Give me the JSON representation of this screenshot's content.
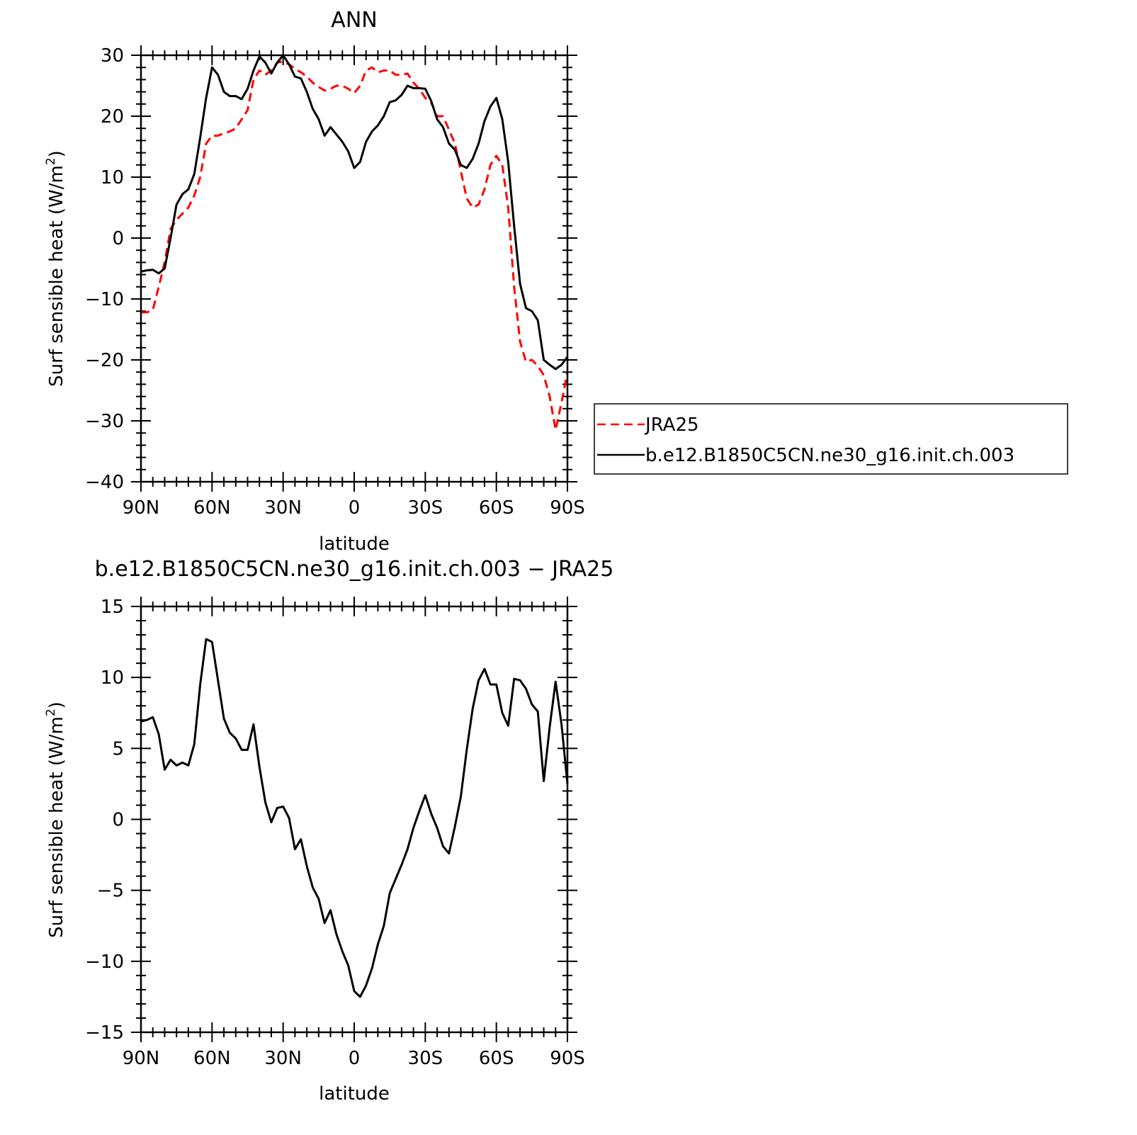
{
  "chart_data": [
    {
      "type": "line",
      "title": "ANN",
      "xlabel": "latitude",
      "ylabel": "Surf sensible heat (W/m²)",
      "ylabel_base": "Surf sensible heat (W/m",
      "ylabel_sup": "2",
      "ylabel_end": ")",
      "xlim": [
        90,
        -90
      ],
      "ylim": [
        -40,
        30
      ],
      "x_ticks": [
        90,
        60,
        30,
        0,
        -30,
        -60,
        -90
      ],
      "x_tick_labels": [
        "90N",
        "60N",
        "30N",
        "0",
        "30S",
        "60S",
        "90S"
      ],
      "y_ticks": [
        -40,
        -30,
        -20,
        -10,
        0,
        10,
        20,
        30
      ],
      "y_tick_labels": [
        "−40",
        "−30",
        "−20",
        "−10",
        "0",
        "10",
        "20",
        "30"
      ],
      "legend_position": "right",
      "series": [
        {
          "name": "JRA25",
          "color": "#ff0000",
          "style": "dashed",
          "points": [
            [
              90,
              -12.2
            ],
            [
              87.5,
              -12.2
            ],
            [
              85,
              -11.8
            ],
            [
              82.5,
              -8
            ],
            [
              80,
              -4
            ],
            [
              77.5,
              1.5
            ],
            [
              75,
              3
            ],
            [
              72.5,
              4
            ],
            [
              70,
              5
            ],
            [
              67.5,
              7
            ],
            [
              65,
              10
            ],
            [
              62.5,
              15.5
            ],
            [
              60,
              16.8
            ],
            [
              57.5,
              16.8
            ],
            [
              55,
              17.2
            ],
            [
              52.5,
              17.5
            ],
            [
              50,
              18
            ],
            [
              47.5,
              19.5
            ],
            [
              45,
              21
            ],
            [
              42.5,
              26
            ],
            [
              40,
              27.5
            ],
            [
              37.5,
              26.8
            ],
            [
              35,
              27.5
            ],
            [
              32.5,
              28.8
            ],
            [
              30,
              29
            ],
            [
              27.5,
              28.5
            ],
            [
              25,
              27.8
            ],
            [
              22.5,
              27.2
            ],
            [
              20,
              26.5
            ],
            [
              17.5,
              25.5
            ],
            [
              15,
              24.8
            ],
            [
              12.5,
              24.2
            ],
            [
              10,
              24.5
            ],
            [
              7.5,
              25
            ],
            [
              5,
              25
            ],
            [
              2.5,
              24.5
            ],
            [
              0,
              23.8
            ],
            [
              -2.5,
              25
            ],
            [
              -5,
              27.5
            ],
            [
              -7.5,
              28
            ],
            [
              -10,
              27.2
            ],
            [
              -12.5,
              27.5
            ],
            [
              -15,
              27.5
            ],
            [
              -17.5,
              26.8
            ],
            [
              -20,
              26.8
            ],
            [
              -22.5,
              27
            ],
            [
              -25,
              25.5
            ],
            [
              -27.5,
              24.5
            ],
            [
              -30,
              23
            ],
            [
              -32.5,
              22.2
            ],
            [
              -35,
              20
            ],
            [
              -37.5,
              20
            ],
            [
              -40,
              17.8
            ],
            [
              -42.5,
              15.5
            ],
            [
              -45,
              11
            ],
            [
              -47.5,
              6.5
            ],
            [
              -50,
              5
            ],
            [
              -52.5,
              5.5
            ],
            [
              -55,
              8
            ],
            [
              -57.5,
              12
            ],
            [
              -60,
              13.5
            ],
            [
              -62.5,
              12
            ],
            [
              -65,
              5
            ],
            [
              -67.5,
              -8
            ],
            [
              -70,
              -17
            ],
            [
              -72.5,
              -20.3
            ],
            [
              -75,
              -20
            ],
            [
              -77.5,
              -21
            ],
            [
              -80,
              -22.5
            ],
            [
              -82.5,
              -26
            ],
            [
              -85,
              -31.5
            ],
            [
              -87.5,
              -27
            ],
            [
              -90,
              -22
            ]
          ]
        },
        {
          "name": "b.e12.B1850C5CN.ne30_g16.init.ch.003",
          "color": "#000000",
          "style": "solid",
          "points": [
            [
              90,
              -5.5
            ],
            [
              87.5,
              -5.3
            ],
            [
              85,
              -5.2
            ],
            [
              82.5,
              -5.8
            ],
            [
              80,
              -5
            ],
            [
              77.5,
              0
            ],
            [
              75,
              5.5
            ],
            [
              72.5,
              7.2
            ],
            [
              70,
              8
            ],
            [
              67.5,
              10.5
            ],
            [
              65,
              16.5
            ],
            [
              62.5,
              23
            ],
            [
              60,
              28
            ],
            [
              57.5,
              26.8
            ],
            [
              55,
              24
            ],
            [
              52.5,
              23.3
            ],
            [
              50,
              23.3
            ],
            [
              47.5,
              22.8
            ],
            [
              45,
              24.5
            ],
            [
              42.5,
              27.5
            ],
            [
              40,
              29.8
            ],
            [
              37.5,
              28.8
            ],
            [
              35,
              27
            ],
            [
              32.5,
              28.8
            ],
            [
              30,
              30
            ],
            [
              27.5,
              28.5
            ],
            [
              25,
              26.5
            ],
            [
              22.5,
              26.2
            ],
            [
              20,
              24
            ],
            [
              17.5,
              21.2
            ],
            [
              15,
              19.5
            ],
            [
              12.5,
              16.8
            ],
            [
              10,
              18.2
            ],
            [
              7.5,
              17
            ],
            [
              5,
              15.8
            ],
            [
              2.5,
              14.2
            ],
            [
              0,
              11.5
            ],
            [
              -2.5,
              12.5
            ],
            [
              -5,
              15.8
            ],
            [
              -7.5,
              17.5
            ],
            [
              -10,
              18.5
            ],
            [
              -12.5,
              20
            ],
            [
              -15,
              22.3
            ],
            [
              -17.5,
              22.6
            ],
            [
              -20,
              23.5
            ],
            [
              -22.5,
              25
            ],
            [
              -25,
              24.6
            ],
            [
              -27.5,
              24.6
            ],
            [
              -30,
              24.5
            ],
            [
              -32.5,
              22.5
            ],
            [
              -35,
              19.5
            ],
            [
              -37.5,
              18.2
            ],
            [
              -40,
              15.5
            ],
            [
              -42.5,
              14.5
            ],
            [
              -45,
              12
            ],
            [
              -47.5,
              11.5
            ],
            [
              -50,
              13
            ],
            [
              -52.5,
              15.5
            ],
            [
              -55,
              19.2
            ],
            [
              -57.5,
              21.6
            ],
            [
              -60,
              23
            ],
            [
              -62.5,
              19.5
            ],
            [
              -65,
              12.5
            ],
            [
              -67.5,
              2
            ],
            [
              -70,
              -7.5
            ],
            [
              -72.5,
              -11.5
            ],
            [
              -75,
              -12
            ],
            [
              -77.5,
              -13.5
            ],
            [
              -80,
              -20
            ],
            [
              -82.5,
              -20.8
            ],
            [
              -85,
              -21.5
            ],
            [
              -87.5,
              -20.8
            ],
            [
              -90,
              -19.5
            ]
          ]
        }
      ]
    },
    {
      "type": "line",
      "title": "b.e12.B1850C5CN.ne30_g16.init.ch.003 − JRA25",
      "xlabel": "latitude",
      "ylabel": "Surf sensible heat (W/m²)",
      "ylabel_base": "Surf sensible heat (W/m",
      "ylabel_sup": "2",
      "ylabel_end": ")",
      "xlim": [
        90,
        -90
      ],
      "ylim": [
        -15,
        15
      ],
      "x_ticks": [
        90,
        60,
        30,
        0,
        -30,
        -60,
        -90
      ],
      "x_tick_labels": [
        "90N",
        "60N",
        "30N",
        "0",
        "30S",
        "60S",
        "90S"
      ],
      "y_ticks": [
        -15,
        -10,
        -5,
        0,
        5,
        10,
        15
      ],
      "y_tick_labels": [
        "−15",
        "−10",
        "−5",
        "0",
        "5",
        "10",
        "15"
      ],
      "series": [
        {
          "color": "#000000",
          "style": "solid",
          "points": [
            [
              90,
              6.9
            ],
            [
              87.5,
              7
            ],
            [
              85,
              7.2
            ],
            [
              82.5,
              6
            ],
            [
              80,
              3.5
            ],
            [
              77.5,
              4.2
            ],
            [
              75,
              3.8
            ],
            [
              72.5,
              4
            ],
            [
              70,
              3.8
            ],
            [
              67.5,
              5.3
            ],
            [
              65,
              9.5
            ],
            [
              62.5,
              12.7
            ],
            [
              60,
              12.5
            ],
            [
              57.5,
              9.8
            ],
            [
              55,
              7.1
            ],
            [
              52.5,
              6.1
            ],
            [
              50,
              5.7
            ],
            [
              47.5,
              4.9
            ],
            [
              45,
              4.9
            ],
            [
              42.5,
              6.7
            ],
            [
              40,
              3.7
            ],
            [
              37.5,
              1.2
            ],
            [
              35,
              -0.2
            ],
            [
              32.5,
              0.8
            ],
            [
              30,
              0.9
            ],
            [
              27.5,
              0.1
            ],
            [
              25,
              -2.1
            ],
            [
              22.5,
              -1.4
            ],
            [
              20,
              -3.3
            ],
            [
              17.5,
              -4.8
            ],
            [
              15,
              -5.6
            ],
            [
              12.5,
              -7.3
            ],
            [
              10,
              -6.4
            ],
            [
              7.5,
              -8.1
            ],
            [
              5,
              -9.3
            ],
            [
              2.5,
              -10.3
            ],
            [
              0,
              -12.1
            ],
            [
              -2.5,
              -12.5
            ],
            [
              -5,
              -11.7
            ],
            [
              -7.5,
              -10.5
            ],
            [
              -10,
              -8.8
            ],
            [
              -12.5,
              -7.5
            ],
            [
              -15,
              -5.2
            ],
            [
              -17.5,
              -4.2
            ],
            [
              -20,
              -3.2
            ],
            [
              -22.5,
              -2.1
            ],
            [
              -25,
              -0.6
            ],
            [
              -27.5,
              0.6
            ],
            [
              -30,
              1.7
            ],
            [
              -32.5,
              0.4
            ],
            [
              -35,
              -0.6
            ],
            [
              -37.5,
              -1.9
            ],
            [
              -40,
              -2.4
            ],
            [
              -42.5,
              -0.5
            ],
            [
              -45,
              1.6
            ],
            [
              -47.5,
              4.9
            ],
            [
              -50,
              7.8
            ],
            [
              -52.5,
              9.8
            ],
            [
              -55,
              10.6
            ],
            [
              -57.5,
              9.5
            ],
            [
              -60,
              9.5
            ],
            [
              -62.5,
              7.5
            ],
            [
              -65,
              6.6
            ],
            [
              -67.5,
              9.9
            ],
            [
              -70,
              9.8
            ],
            [
              -72.5,
              9.2
            ],
            [
              -75,
              8.1
            ],
            [
              -77.5,
              7.6
            ],
            [
              -80,
              2.7
            ],
            [
              -82.5,
              6.5
            ],
            [
              -85,
              9.7
            ],
            [
              -87.5,
              6.7
            ],
            [
              -90,
              2.5
            ]
          ]
        }
      ]
    }
  ]
}
